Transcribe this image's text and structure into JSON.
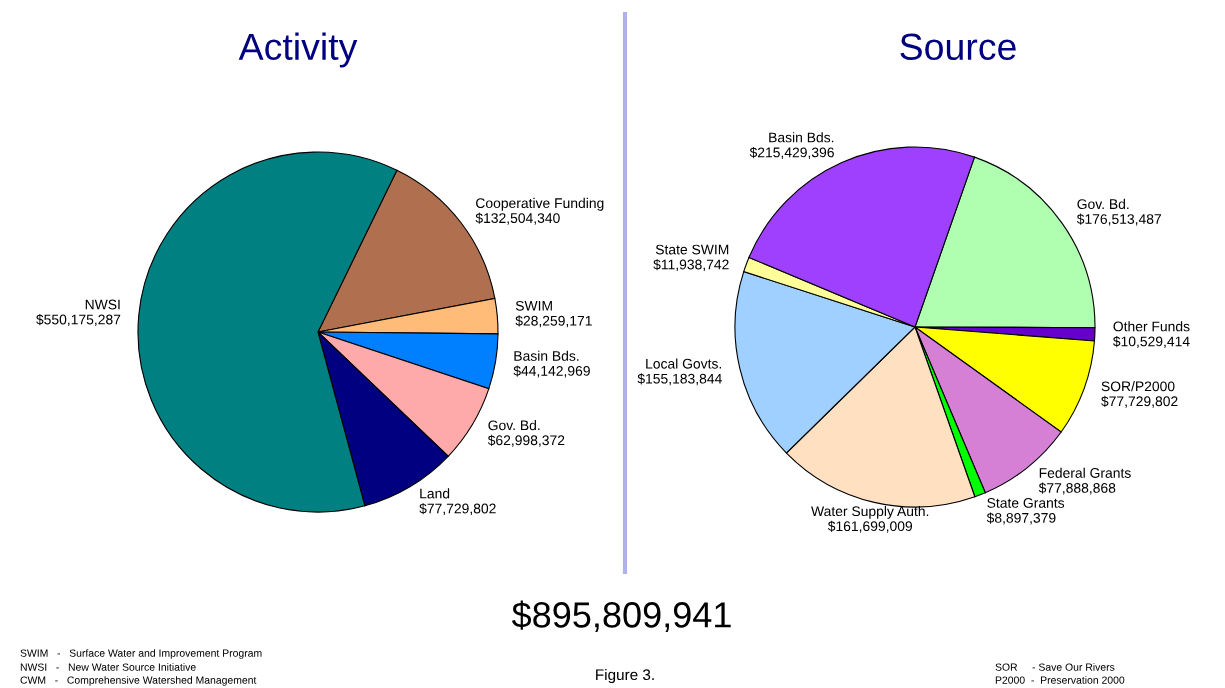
{
  "chart_data": [
    {
      "type": "pie",
      "title": "Activity",
      "categories": [
        "Cooperative Funding",
        "SWIM",
        "Basin Bds.",
        "Gov. Bd.",
        "Land",
        "NWSI"
      ],
      "values": [
        132504340,
        28259171,
        44142969,
        62998372,
        77729802,
        550175287
      ],
      "value_labels": [
        "$132,504,340",
        "$28,259,171",
        "$44,142,969",
        "$62,998,372",
        "$77,729,802",
        "$550,175,287"
      ],
      "colors": [
        "#b0704f",
        "#ffbb77",
        "#0080ff",
        "#ffaaaa",
        "#000080",
        "#008080"
      ],
      "annotations": [
        "$895,809,941",
        "SWIM   -   Surface Water and Improvement Program",
        "NWSI   -   New Water Source Initiative",
        "CWM   -   Comprehensive Watershed Management",
        "Figure 3."
      ]
    },
    {
      "type": "pie",
      "title": "Source",
      "categories": [
        "Gov. Bd.",
        "Other Funds",
        "SOR/P2000",
        "Federal Grants",
        "State Grants",
        "Water Supply Auth.",
        "Local Govts.",
        "State SWIM",
        "Basin Bds."
      ],
      "values": [
        176513487,
        10529414,
        77729802,
        77888868,
        8897379,
        161699009,
        155183844,
        11938742,
        215429396
      ],
      "value_labels": [
        "$176,513,487",
        "$10,529,414",
        "$77,729,802",
        "$77,888,868",
        "$8,897,379",
        "$161,699,009",
        "$155,183,844",
        "$11,938,742",
        "$215,429,396"
      ],
      "colors": [
        "#b0ffb0",
        "#6600cc",
        "#ffff00",
        "#d580d5",
        "#00ff00",
        "#ffe0c0",
        "#a0d0ff",
        "#ffff99",
        "#a040ff"
      ],
      "annotations": [
        "SOR     - Save Our Rivers",
        "P2000  -  Preservation 2000"
      ]
    }
  ]
}
